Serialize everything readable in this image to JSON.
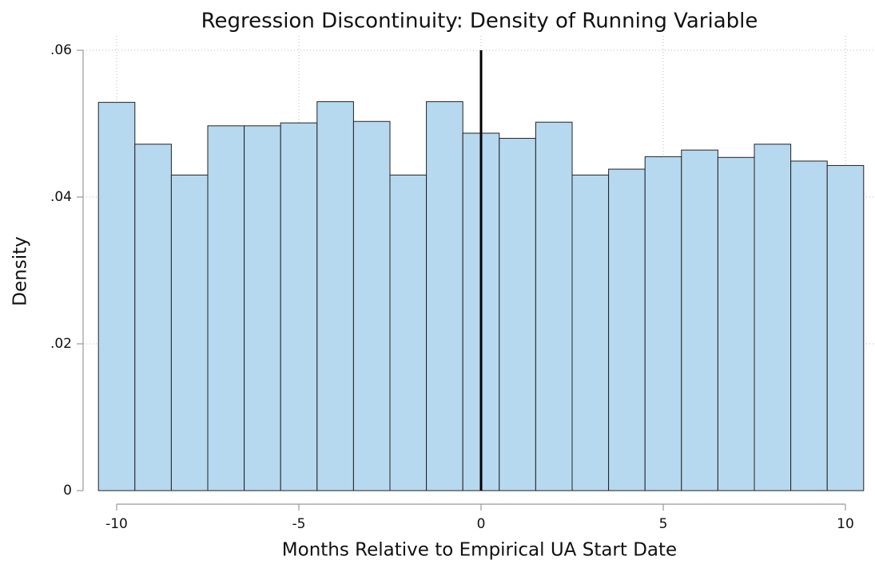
{
  "chart_data": {
    "type": "histogram",
    "title": "Regression Discontinuity: Density of Running Variable",
    "xlabel": "Months Relative to Empirical UA Start Date",
    "ylabel": "Density",
    "bins": [
      -10.5,
      -9.5,
      -8.5,
      -7.5,
      -6.5,
      -5.5,
      -4.5,
      -3.5,
      -2.5,
      -1.5,
      -0.5,
      0.5,
      1.5,
      2.5,
      3.5,
      4.5,
      5.5,
      6.5,
      7.5,
      8.5,
      9.5,
      10.5
    ],
    "values": [
      0.0529,
      0.0472,
      0.043,
      0.0497,
      0.0497,
      0.0501,
      0.053,
      0.0503,
      0.043,
      0.053,
      0.0487,
      0.048,
      0.0502,
      0.043,
      0.0438,
      0.0455,
      0.0464,
      0.0454,
      0.0472,
      0.0449,
      0.0443
    ],
    "color": "#b7d9f0",
    "edge_color": "#222222",
    "vline": 0,
    "vline_color": "#000000",
    "xlim": [
      -10.5,
      10.5
    ],
    "xticks": [
      -10,
      -5,
      0,
      5,
      10
    ],
    "ylim": [
      0,
      0.06
    ],
    "yticks": [
      0,
      {
        "value": 0.02,
        "label": ".02"
      },
      {
        "value": 0.04,
        "label": ".04"
      },
      {
        "value": 0.06,
        "label": ".06"
      }
    ],
    "grid": true
  }
}
